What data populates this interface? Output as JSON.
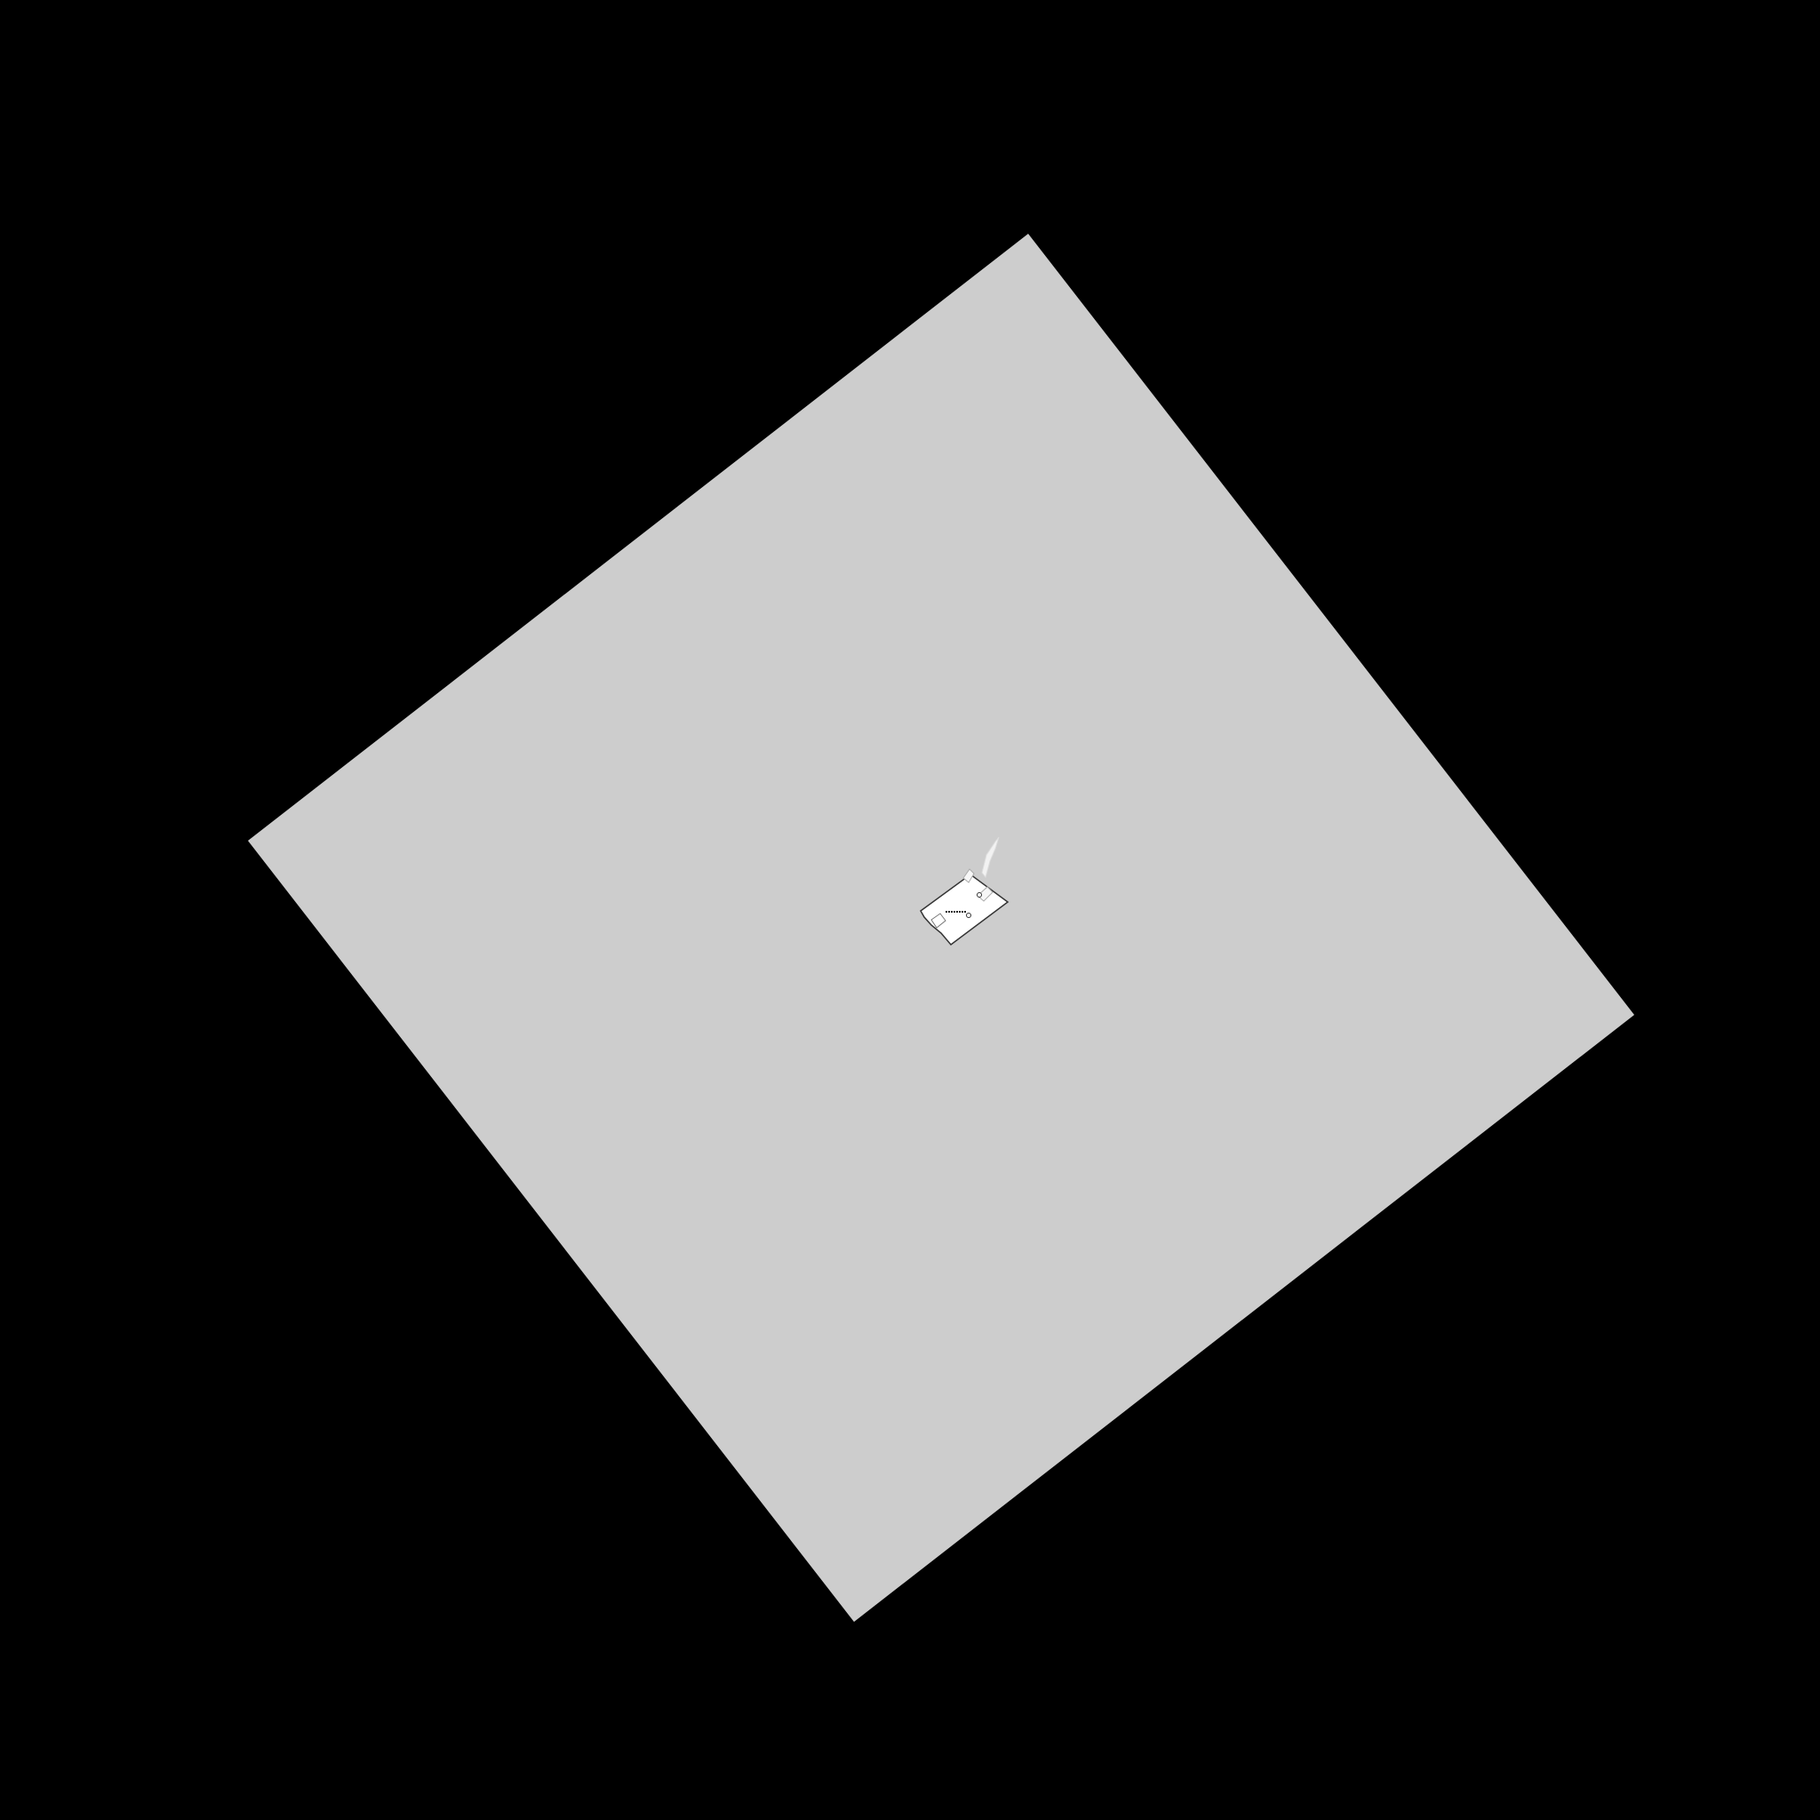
{
  "scene": {
    "background_color": "#000000",
    "panel_color": "#cdcdcd",
    "widget_color": "#ffffff",
    "widget_outline_color": "#333333",
    "widget_text": ""
  }
}
